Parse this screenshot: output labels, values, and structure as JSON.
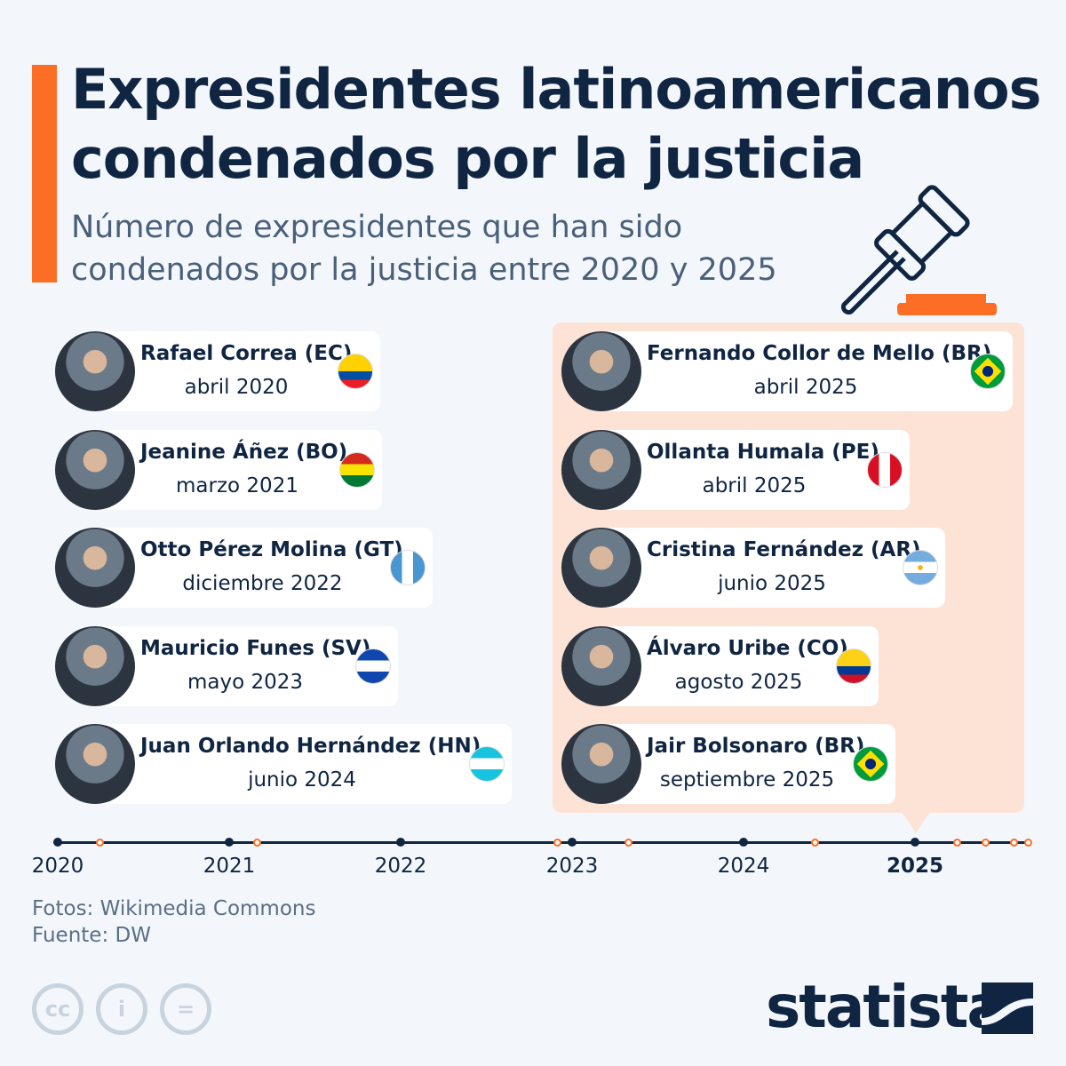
{
  "title": "Expresidentes latinoamericanos condenados por la justicia",
  "subtitle_line1": "Número de expresidentes que han sido",
  "subtitle_line2": "condenados por la justicia entre 2020 y 2025",
  "left": [
    {
      "name": "Rafael Correa (EC)",
      "date": "abril 2020",
      "flag": "EC"
    },
    {
      "name": "Jeanine Áñez (BO)",
      "date": "marzo 2021",
      "flag": "BO"
    },
    {
      "name": "Otto Pérez Molina (GT)",
      "date": "diciembre 2022",
      "flag": "GT"
    },
    {
      "name": "Mauricio Funes (SV)",
      "date": "mayo 2023",
      "flag": "SV"
    },
    {
      "name": "Juan Orlando Hernández (HN)",
      "date": "junio 2024",
      "flag": "HN"
    }
  ],
  "right": [
    {
      "name": "Fernando Collor de Mello (BR)",
      "date": "abril 2025",
      "flag": "BR"
    },
    {
      "name": "Ollanta Humala (PE)",
      "date": "abril 2025",
      "flag": "PE"
    },
    {
      "name": "Cristina Fernández (AR)",
      "date": "junio 2025",
      "flag": "AR"
    },
    {
      "name": "Álvaro Uribe (CO)",
      "date": "agosto 2025",
      "flag": "CO"
    },
    {
      "name": "Jair Bolsonaro (BR)",
      "date": "septiembre 2025",
      "flag": "BR"
    }
  ],
  "years": [
    "2020",
    "2021",
    "2022",
    "2023",
    "2024",
    "2025"
  ],
  "source_photos": "Fotos: Wikimedia Commons",
  "source": "Fuente: DW",
  "logo": "statista",
  "colors": {
    "accent": "#fc6d26",
    "navy": "#0f2541",
    "panel": "#fde2d6"
  }
}
